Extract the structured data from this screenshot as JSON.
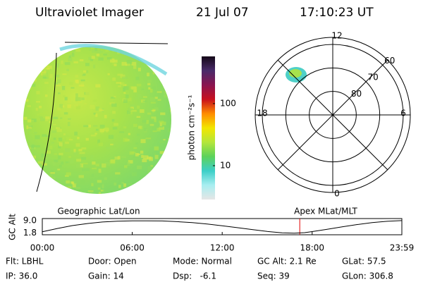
{
  "header": {
    "title": "Ultraviolet Imager",
    "date": "21 Jul 07",
    "time": "17:10:23 UT"
  },
  "colorbar": {
    "label": "photon cm⁻²s⁻¹",
    "log": true,
    "lim": [
      2.85,
      576
    ],
    "ticks": [
      10,
      100
    ],
    "colors": [
      "#140818",
      "#4a2a6a",
      "#8a1450",
      "#c8101e",
      "#ff8c00",
      "#f2e600",
      "#b4e63c",
      "#5cd25a",
      "#3ccfc8",
      "#a8eef0",
      "#e6e6e6"
    ]
  },
  "polar": {
    "mlt_labels": [
      "12",
      "6",
      "0",
      "18"
    ],
    "lat_lim": [
      57,
      90
    ],
    "lat_circles": [
      80,
      70,
      60
    ]
  },
  "altitude": {
    "label": "GC Alt",
    "left_label": "Geographic Lat/Lon",
    "right_label": "Apex MLat/MLT",
    "x": [
      0,
      1,
      2,
      3,
      4,
      5,
      6,
      7,
      8,
      9,
      10,
      11,
      12,
      13,
      14,
      15,
      16,
      16.8,
      17.5,
      18,
      19,
      20,
      21,
      22,
      23,
      23.98
    ],
    "values": [
      2.6,
      4.5,
      6.2,
      7.4,
      8.3,
      8.8,
      9.0,
      9.0,
      8.9,
      8.5,
      7.9,
      7.1,
      6.1,
      5.0,
      3.9,
      2.8,
      2.0,
      1.8,
      2.1,
      2.7,
      4.0,
      5.5,
      6.8,
      7.9,
      8.7,
      9.1
    ],
    "current_x": 17.173,
    "xlim": [
      0,
      23.983
    ],
    "ylim": [
      0.85,
      10.3
    ],
    "yticks": [
      1.8,
      {
        "value": 9,
        "label": "9.0"
      }
    ],
    "xticks": [
      {
        "value": 0,
        "label": "00:00"
      },
      {
        "value": 6,
        "label": "06:00"
      },
      {
        "value": 12,
        "label": "12:00"
      },
      {
        "value": 18,
        "label": "18:00"
      },
      {
        "value": 23.983,
        "label": "23:59"
      }
    ]
  },
  "footer": {
    "rows": [
      [
        "Flt: LBHL",
        "Door: Open",
        "Mode: Normal",
        "GC Alt: 2.1 Re",
        "GLat: 57.5"
      ],
      [
        "IP: 36.0",
        "Gain: 14",
        "Dsp:   -6.1",
        "Seq: 39",
        "GLon: 306.8"
      ]
    ]
  }
}
